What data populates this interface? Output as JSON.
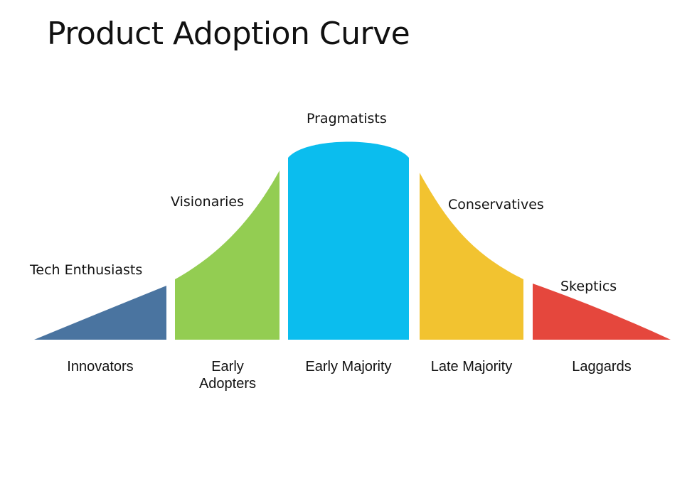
{
  "title": "Product Adoption Curve",
  "segments": [
    {
      "name": "Innovators",
      "name_lines": [
        "Innovators"
      ],
      "persona": "Tech Enthusiasts",
      "color": "#4a74a0"
    },
    {
      "name": "Early Adopters",
      "name_lines": [
        "Early",
        "Adopters"
      ],
      "persona": "Visionaries",
      "color": "#93cd52"
    },
    {
      "name": "Early Majority",
      "name_lines": [
        "Early Majority"
      ],
      "persona": "Pragmatists",
      "color": "#0bbdee"
    },
    {
      "name": "Late Majority",
      "name_lines": [
        "Late Majority"
      ],
      "persona": "Conservatives",
      "color": "#f2c330"
    },
    {
      "name": "Laggards",
      "name_lines": [
        "Laggards"
      ],
      "persona": "Skeptics",
      "color": "#e5473d"
    }
  ]
}
